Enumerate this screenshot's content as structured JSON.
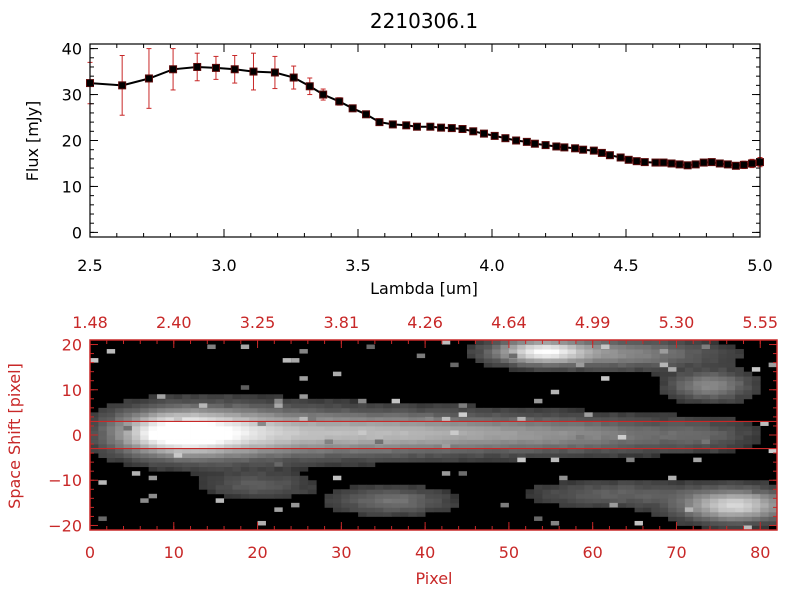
{
  "colors": {
    "axis": "#000000",
    "accent": "#c82828",
    "marker": "#000000",
    "errorbar": "#c82828",
    "background": "#ffffff"
  },
  "chart_data": [
    {
      "type": "line",
      "title": "2210306.1",
      "xlabel": "Lambda [um]",
      "ylabel": "Flux [mJy]",
      "xlim": [
        2.5,
        5.0
      ],
      "ylim": [
        -1,
        41
      ],
      "xticks": [
        2.5,
        3.0,
        3.5,
        4.0,
        4.5,
        5.0
      ],
      "xtick_labels": [
        "2.5",
        "3.0",
        "3.5",
        "4.0",
        "4.5",
        "5.0"
      ],
      "yticks": [
        0,
        10,
        20,
        30,
        40
      ],
      "ytick_labels": [
        "0",
        "10",
        "20",
        "30",
        "40"
      ],
      "grid": false,
      "series": [
        {
          "x": [
            2.5,
            2.62,
            2.72,
            2.81,
            2.9,
            2.97,
            3.04,
            3.11,
            3.19,
            3.26,
            3.32,
            3.37,
            3.43,
            3.48,
            3.53,
            3.58,
            3.63,
            3.68,
            3.72,
            3.77,
            3.81,
            3.85,
            3.89,
            3.93,
            3.97,
            4.01,
            4.05,
            4.09,
            4.13,
            4.16,
            4.2,
            4.24,
            4.27,
            4.31,
            4.34,
            4.38,
            4.41,
            4.44,
            4.48,
            4.51,
            4.54,
            4.57,
            4.61,
            4.64,
            4.67,
            4.7,
            4.73,
            4.76,
            4.79,
            4.82,
            4.85,
            4.88,
            4.91,
            4.94,
            4.97,
            5.0
          ],
          "y": [
            32.5,
            32.0,
            33.5,
            35.5,
            36.0,
            35.8,
            35.5,
            35.0,
            34.8,
            33.7,
            31.8,
            30.0,
            28.5,
            27.0,
            25.7,
            24.0,
            23.5,
            23.3,
            23.0,
            23.0,
            22.8,
            22.7,
            22.5,
            22.0,
            21.5,
            21.0,
            20.5,
            20.0,
            19.7,
            19.3,
            19.0,
            18.7,
            18.5,
            18.3,
            18.0,
            17.8,
            17.3,
            16.8,
            16.3,
            15.8,
            15.5,
            15.3,
            15.2,
            15.2,
            15.0,
            14.8,
            14.6,
            14.8,
            15.2,
            15.3,
            15.0,
            14.8,
            14.5,
            14.7,
            15.0,
            15.3
          ],
          "yerr": [
            4.5,
            6.5,
            6.5,
            4.5,
            3.0,
            2.5,
            3.0,
            4.0,
            3.5,
            2.5,
            1.8,
            1.2,
            0.8,
            0.6,
            0.5,
            0.4,
            0.4,
            0.4,
            0.4,
            0.4,
            0.4,
            0.4,
            0.4,
            0.4,
            0.4,
            0.4,
            0.4,
            0.4,
            0.4,
            0.4,
            0.4,
            0.4,
            0.4,
            0.4,
            0.4,
            0.4,
            0.4,
            0.4,
            0.4,
            0.4,
            0.4,
            0.4,
            0.4,
            0.4,
            0.4,
            0.4,
            0.4,
            0.5,
            0.6,
            0.7,
            0.7,
            0.7,
            0.7,
            0.8,
            0.9,
            1.0
          ]
        }
      ]
    },
    {
      "type": "heatmap",
      "xlabel": "Pixel",
      "ylabel": "Space Shift [pixel]",
      "xlim": [
        0,
        82
      ],
      "ylim": [
        -21,
        21
      ],
      "xticks": [
        0,
        10,
        20,
        30,
        40,
        50,
        60,
        70,
        80
      ],
      "xtick_labels": [
        "0",
        "10",
        "20",
        "30",
        "40",
        "50",
        "60",
        "70",
        "80"
      ],
      "yticks": [
        -20,
        -10,
        0,
        10,
        20
      ],
      "ytick_labels": [
        "−20",
        "−10",
        "0",
        "10",
        "20"
      ],
      "top_axis_labels": [
        "1.48",
        "2.40",
        "3.25",
        "3.81",
        "4.26",
        "4.64",
        "4.99",
        "5.30",
        "5.55"
      ],
      "extraction_lines": [
        3,
        -3
      ],
      "blobs": [
        {
          "x": 10,
          "y": 0.5,
          "sx": 4.5,
          "sy": 3.0,
          "a": 1.0
        },
        {
          "x": 17,
          "y": 0.5,
          "sx": 6,
          "sy": 3.5,
          "a": 0.55
        },
        {
          "x": 30,
          "y": 0.5,
          "sx": 9,
          "sy": 3.0,
          "a": 0.45
        },
        {
          "x": 45,
          "y": 0.3,
          "sx": 10,
          "sy": 2.6,
          "a": 0.35
        },
        {
          "x": 60,
          "y": 0.0,
          "sx": 8,
          "sy": 2.4,
          "a": 0.22
        },
        {
          "x": 73,
          "y": 0.0,
          "sx": 4,
          "sy": 2.2,
          "a": 0.14
        },
        {
          "x": 54,
          "y": 18.5,
          "sx": 3.5,
          "sy": 1.6,
          "a": 0.85
        },
        {
          "x": 63,
          "y": 18.0,
          "sx": 7,
          "sy": 2.0,
          "a": 0.35
        },
        {
          "x": 74,
          "y": 11.0,
          "sx": 3,
          "sy": 2.0,
          "a": 0.35
        },
        {
          "x": 77,
          "y": -15.5,
          "sx": 4,
          "sy": 2.2,
          "a": 0.75
        },
        {
          "x": 36,
          "y": -14.5,
          "sx": 4,
          "sy": 1.8,
          "a": 0.25
        },
        {
          "x": 63,
          "y": -13.0,
          "sx": 6,
          "sy": 1.8,
          "a": 0.18
        },
        {
          "x": 20,
          "y": -11.0,
          "sx": 4,
          "sy": 1.8,
          "a": 0.15
        }
      ]
    }
  ]
}
